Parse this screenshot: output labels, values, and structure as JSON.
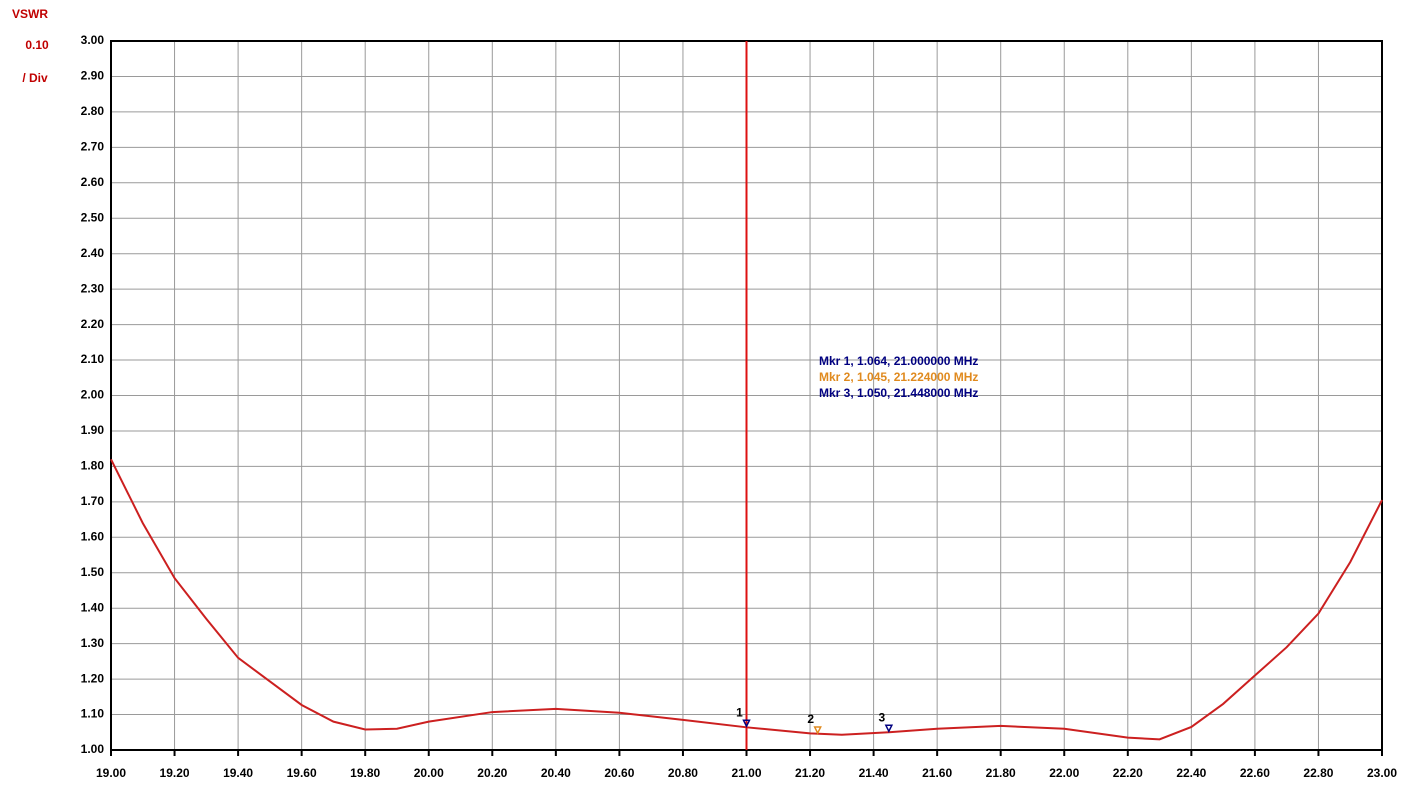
{
  "chart_data": {
    "type": "line",
    "y_title": "VSWR",
    "scale_per_div": "0.10",
    "scale_unit": "/ Div",
    "x": [
      19.0,
      19.1,
      19.2,
      19.3,
      19.4,
      19.6,
      19.7,
      19.8,
      19.9,
      20.0,
      20.2,
      20.4,
      20.6,
      20.8,
      21.0,
      21.2,
      21.3,
      21.448,
      21.6,
      21.8,
      22.0,
      22.2,
      22.3,
      22.4,
      22.5,
      22.6,
      22.7,
      22.8,
      22.9,
      23.0
    ],
    "values": [
      1.82,
      1.64,
      1.485,
      1.37,
      1.26,
      1.127,
      1.08,
      1.058,
      1.06,
      1.08,
      1.107,
      1.116,
      1.105,
      1.085,
      1.064,
      1.047,
      1.043,
      1.05,
      1.06,
      1.068,
      1.06,
      1.035,
      1.03,
      1.065,
      1.13,
      1.21,
      1.29,
      1.385,
      1.53,
      1.705
    ],
    "color": "#cc2020",
    "cursor_x": 21.0,
    "cursor_color": "#dd1111",
    "markers": [
      {
        "label": "1",
        "text": "Mkr 1, 1.064, 21.000000 MHz",
        "x": 21.0,
        "value": 1.064,
        "color": "#000080"
      },
      {
        "label": "2",
        "text": "Mkr 2, 1.045, 21.224000 MHz",
        "x": 21.224,
        "value": 1.045,
        "color": "#e08a1e"
      },
      {
        "label": "3",
        "text": "Mkr 3, 1.050, 21.448000 MHz",
        "x": 21.448,
        "value": 1.05,
        "color": "#000080"
      }
    ],
    "xlim": [
      19.0,
      23.0
    ],
    "ylim": [
      1.0,
      3.0
    ],
    "xticks": [
      {
        "value": 19.0,
        "label": "19.00"
      },
      {
        "value": 19.2,
        "label": "19.20"
      },
      {
        "value": 19.4,
        "label": "19.40"
      },
      {
        "value": 19.6,
        "label": "19.60"
      },
      {
        "value": 19.8,
        "label": "19.80"
      },
      {
        "value": 20.0,
        "label": "20.00"
      },
      {
        "value": 20.2,
        "label": "20.20"
      },
      {
        "value": 20.4,
        "label": "20.40"
      },
      {
        "value": 20.6,
        "label": "20.60"
      },
      {
        "value": 20.8,
        "label": "20.80"
      },
      {
        "value": 21.0,
        "label": "21.00"
      },
      {
        "value": 21.2,
        "label": "21.20"
      },
      {
        "value": 21.4,
        "label": "21.40"
      },
      {
        "value": 21.6,
        "label": "21.60"
      },
      {
        "value": 21.8,
        "label": "21.80"
      },
      {
        "value": 22.0,
        "label": "22.00"
      },
      {
        "value": 22.2,
        "label": "22.20"
      },
      {
        "value": 22.4,
        "label": "22.40"
      },
      {
        "value": 22.6,
        "label": "22.60"
      },
      {
        "value": 22.8,
        "label": "22.80"
      },
      {
        "value": 23.0,
        "label": "23.00"
      }
    ],
    "yticks": [
      {
        "value": 1.0,
        "label": "1.00"
      },
      {
        "value": 1.1,
        "label": "1.10"
      },
      {
        "value": 1.2,
        "label": "1.20"
      },
      {
        "value": 1.3,
        "label": "1.30"
      },
      {
        "value": 1.4,
        "label": "1.40"
      },
      {
        "value": 1.5,
        "label": "1.50"
      },
      {
        "value": 1.6,
        "label": "1.60"
      },
      {
        "value": 1.7,
        "label": "1.70"
      },
      {
        "value": 1.8,
        "label": "1.80"
      },
      {
        "value": 1.9,
        "label": "1.90"
      },
      {
        "value": 2.0,
        "label": "2.00"
      },
      {
        "value": 2.1,
        "label": "2.10"
      },
      {
        "value": 2.2,
        "label": "2.20"
      },
      {
        "value": 2.3,
        "label": "2.30"
      },
      {
        "value": 2.4,
        "label": "2.40"
      },
      {
        "value": 2.5,
        "label": "2.50"
      },
      {
        "value": 2.6,
        "label": "2.60"
      },
      {
        "value": 2.7,
        "label": "2.70"
      },
      {
        "value": 2.8,
        "label": "2.80"
      },
      {
        "value": 2.9,
        "label": "2.90"
      },
      {
        "value": 3.0,
        "label": "3.00"
      }
    ],
    "grid": true
  }
}
